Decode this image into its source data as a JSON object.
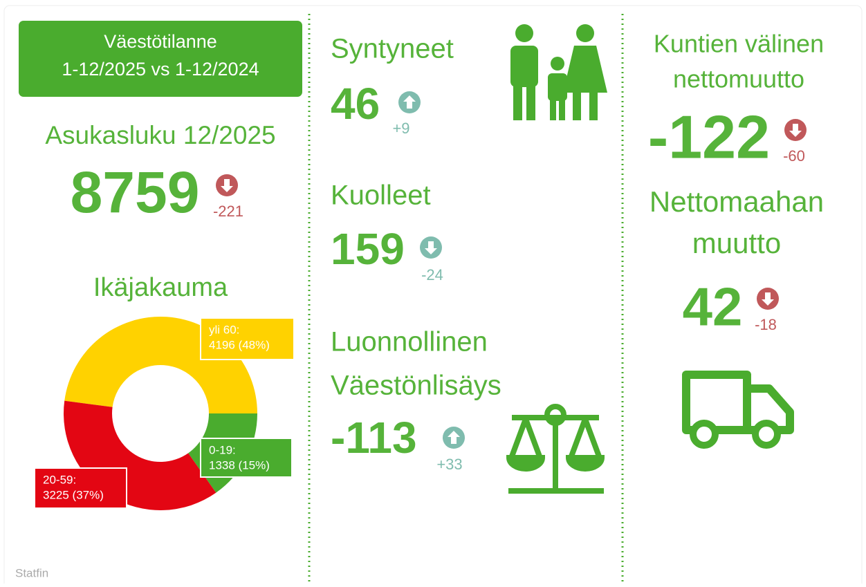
{
  "header": {
    "lines": [
      "Väestötilanne",
      "1-12/2025 vs 1-12/2024"
    ]
  },
  "stats": [
    {
      "label": [
        "Asukasluku 12/2025"
      ],
      "value": 8759,
      "change": "-221",
      "arrow": "down",
      "change_color": "#c0585a"
    },
    {
      "label": [
        "Syntyneet"
      ],
      "value": 46,
      "change": "+9",
      "arrow": "up",
      "change_color": "#7fbcae"
    },
    {
      "label": [
        "Kuolleet"
      ],
      "value": 159,
      "change": "-24",
      "arrow": "down",
      "change_color": "#7fbcae"
    },
    {
      "label": [
        "Luonnollinen",
        "Väestönlisäys"
      ],
      "value": -113,
      "change": "+33",
      "arrow": "up",
      "change_color": "#7fbcae"
    },
    {
      "label": [
        "Kuntien välinen",
        "nettomuutto"
      ],
      "value": -122,
      "change": "-60",
      "arrow": "down",
      "change_color": "#c0585a"
    },
    {
      "label": [
        "Nettomaahan",
        "muutto"
      ],
      "value": 42,
      "change": "-18",
      "arrow": "down",
      "change_color": "#c0585a"
    }
  ],
  "chart_data": {
    "type": "pie",
    "title": "Ikäjakauma",
    "categories": [
      "yli 60:",
      "0-19:",
      "20-59:"
    ],
    "values": [
      4196,
      1338,
      3225
    ],
    "value_labels": [
      "4196 (48%)",
      "1338 (15%)",
      "3225 (37%)"
    ],
    "colors": [
      "#ffd200",
      "#4aac2e",
      "#e30613"
    ]
  },
  "source": "Statfin"
}
